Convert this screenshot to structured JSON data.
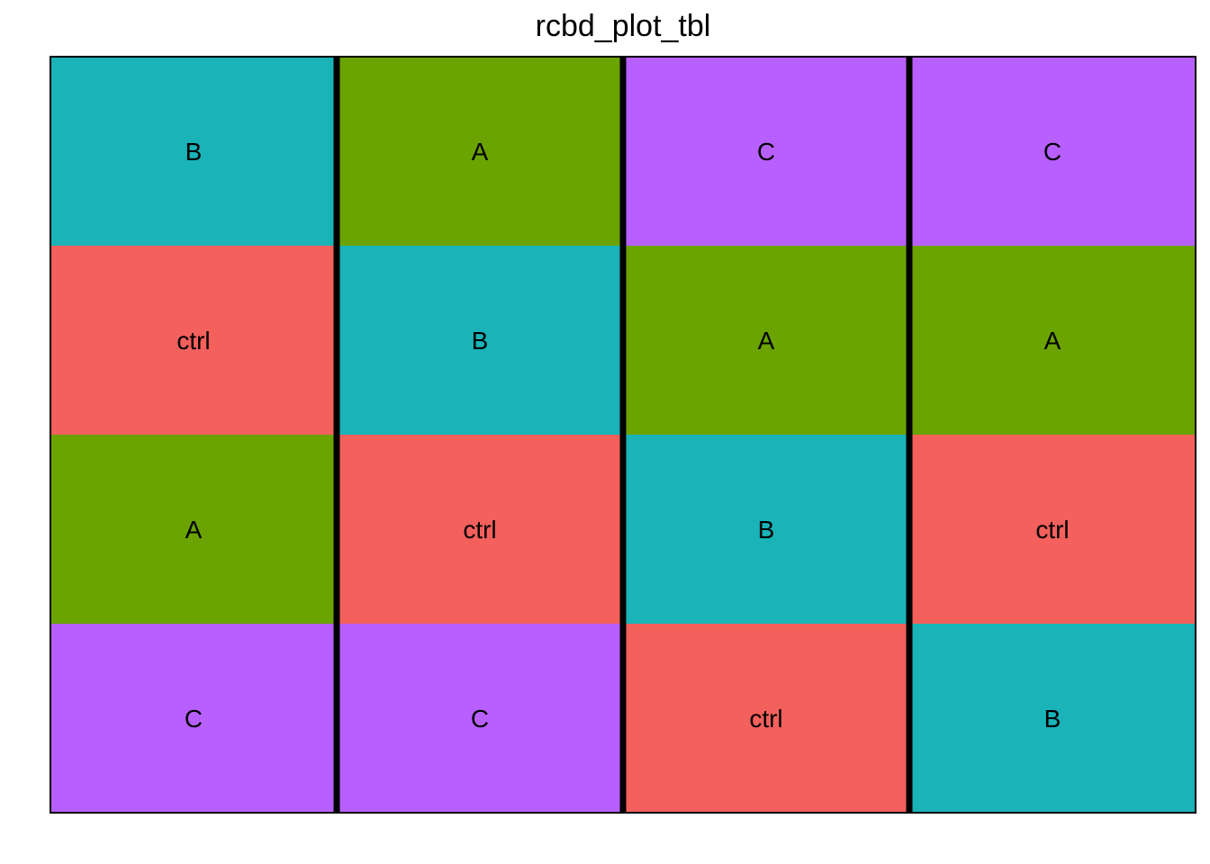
{
  "chart_data": {
    "type": "heatmap",
    "title": "rcbd_plot_tbl",
    "xlabel": "",
    "ylabel": "",
    "grid": false,
    "legend": "none",
    "blocks": 4,
    "rows": 4,
    "cells": [
      {
        "block": 1,
        "row": 1,
        "treatment": "B"
      },
      {
        "block": 1,
        "row": 2,
        "treatment": "ctrl"
      },
      {
        "block": 1,
        "row": 3,
        "treatment": "A"
      },
      {
        "block": 1,
        "row": 4,
        "treatment": "C"
      },
      {
        "block": 2,
        "row": 1,
        "treatment": "A"
      },
      {
        "block": 2,
        "row": 2,
        "treatment": "B"
      },
      {
        "block": 2,
        "row": 3,
        "treatment": "ctrl"
      },
      {
        "block": 2,
        "row": 4,
        "treatment": "C"
      },
      {
        "block": 3,
        "row": 1,
        "treatment": "C"
      },
      {
        "block": 3,
        "row": 2,
        "treatment": "A"
      },
      {
        "block": 3,
        "row": 3,
        "treatment": "B"
      },
      {
        "block": 3,
        "row": 4,
        "treatment": "ctrl"
      },
      {
        "block": 4,
        "row": 1,
        "treatment": "C"
      },
      {
        "block": 4,
        "row": 2,
        "treatment": "A"
      },
      {
        "block": 4,
        "row": 3,
        "treatment": "ctrl"
      },
      {
        "block": 4,
        "row": 4,
        "treatment": "B"
      }
    ],
    "colors": {
      "ctrl": "#F8766D",
      "A": "#7CAE00",
      "B": "#00BFC4",
      "C": "#C77CFF"
    },
    "render_colors": {
      "ctrl": "#F4605C",
      "A": "#6BA300",
      "B": "#19B3B8",
      "C": "#B860FF"
    }
  }
}
